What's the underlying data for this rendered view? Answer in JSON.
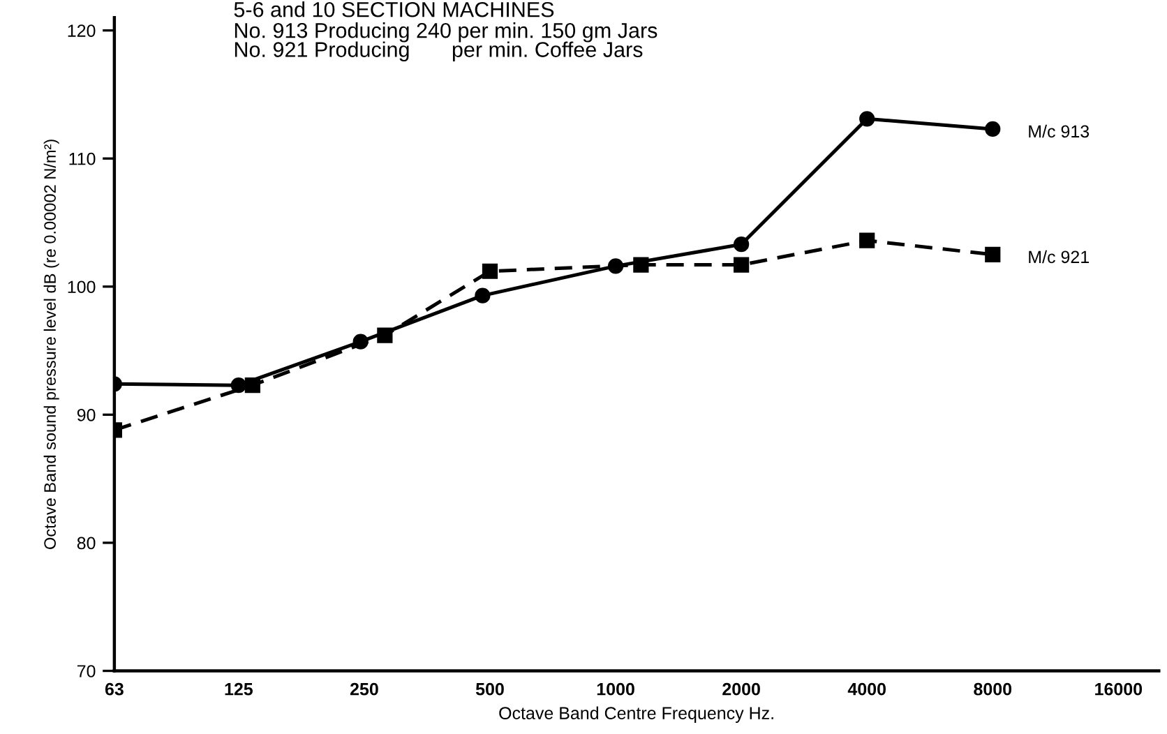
{
  "chart_data": {
    "type": "line",
    "title": "5-6 and 10 SECTION MACHINES",
    "subtitle": "No. 913 Producing 240 per min. 150 gm Jars\nNo. 921 Producing       per min. Coffee Jars",
    "xlabel": "Octave Band Centre Frequency Hz.",
    "ylabel": "Octave Band sound pressure level dB (re 0.00002 N/m²)",
    "log": "x",
    "xlim": [
      63,
      20000
    ],
    "xticks": [
      63,
      125,
      250,
      500,
      1000,
      2000,
      4000,
      8000,
      16000
    ],
    "ylim": [
      70,
      121
    ],
    "yticks": [
      70,
      80,
      90,
      100,
      110,
      120
    ],
    "grid": false,
    "legend": false,
    "series": [
      {
        "name": "M/c 913",
        "color": "#000000",
        "marker": "circle",
        "line_style": "solid",
        "x": [
          63,
          125,
          245,
          480,
          1000,
          2000,
          4000,
          8000
        ],
        "values": [
          92.4,
          92.3,
          95.7,
          99.3,
          101.6,
          103.3,
          113.1,
          112.3
        ]
      },
      {
        "name": "M/c 921",
        "color": "#000000",
        "marker": "square",
        "line_style": "dashed",
        "x": [
          63,
          135,
          280,
          500,
          1150,
          2000,
          4000,
          8000
        ],
        "values": [
          88.8,
          92.3,
          96.2,
          101.2,
          101.7,
          101.7,
          103.6,
          102.5
        ]
      }
    ]
  }
}
